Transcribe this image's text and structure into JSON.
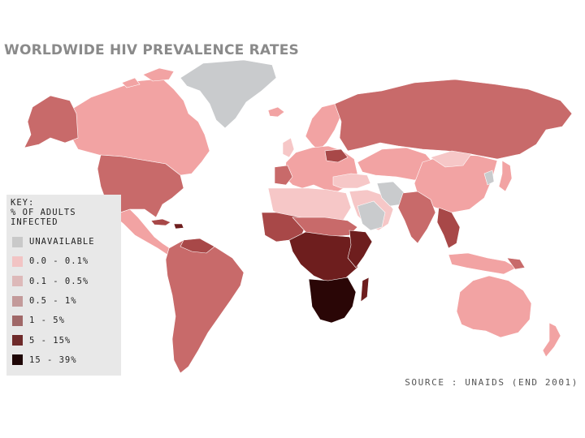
{
  "title": "WORLDWIDE HIV PREVALENCE RATES",
  "legend": {
    "heading": [
      "KEY:",
      "% OF ADULTS",
      "INFECTED"
    ],
    "items": [
      {
        "label": "UNAVAILABLE",
        "color": "#c9c9c9"
      },
      {
        "label": "0.0 - 0.1%",
        "color": "#f2c4c4"
      },
      {
        "label": "0.1 - 0.5%",
        "color": "#ddb9b9"
      },
      {
        "label": "0.5 - 1%",
        "color": "#c39a9a"
      },
      {
        "label": "1 - 5%",
        "color": "#a06868"
      },
      {
        "label": "5 - 15%",
        "color": "#6e2a2a"
      },
      {
        "label": "15 - 39%",
        "color": "#1e0606"
      }
    ]
  },
  "source": "SOURCE : UNAIDS (END 2001)",
  "map_colors": {
    "grey": "#c9cbcd",
    "light": "#f2a3a3",
    "pale": "#f6c7c7",
    "medium": "#c86a6a",
    "dark": "#a84848",
    "darker": "#6e1e1e",
    "darkest": "#2a0606"
  }
}
